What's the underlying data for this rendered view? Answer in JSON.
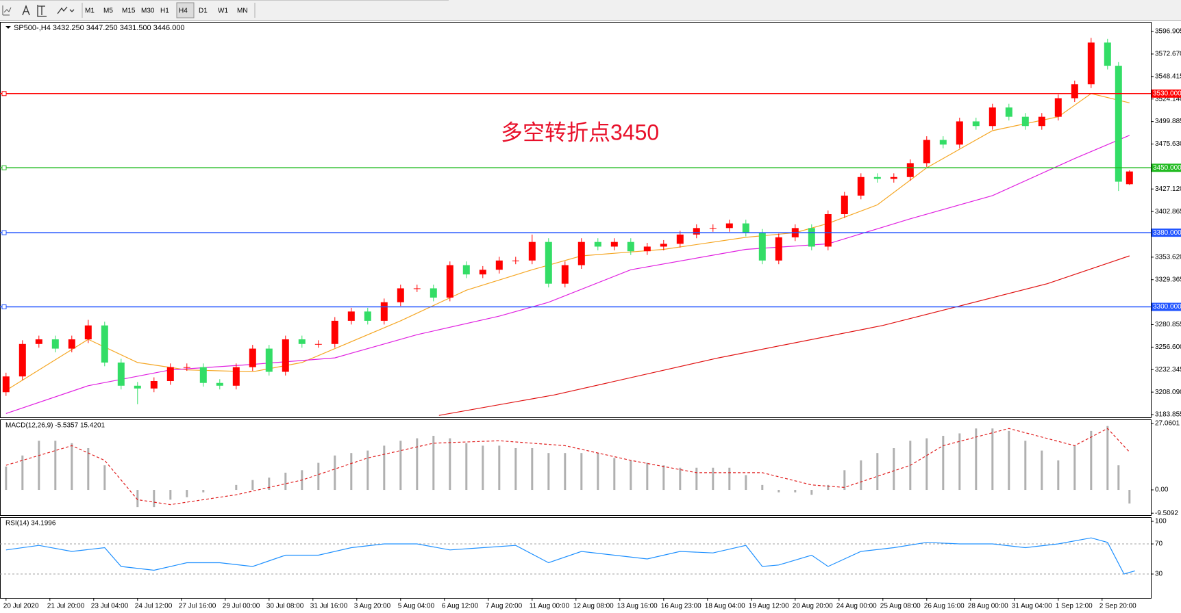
{
  "toolbar": {
    "timeframes": [
      "M1",
      "M5",
      "M15",
      "M30",
      "H1",
      "H4",
      "D1",
      "W1",
      "MN"
    ],
    "active": 5
  },
  "chart_data": [
    {
      "type": "candlestick",
      "title": "SP500-,H4  3432.250 3447.250 3431.500 3446.000",
      "annotation": "多空转折点3450",
      "up_color": "#ff0000",
      "down_color": "#33dd66",
      "annotation_color": "#e8102a",
      "x": [
        0,
        3,
        6,
        9,
        12,
        15,
        18,
        21,
        24,
        27,
        30,
        33,
        36,
        39,
        42,
        45,
        48,
        51,
        54,
        57,
        60,
        63,
        66,
        69,
        72,
        75,
        78,
        81,
        84,
        87,
        90,
        93,
        96,
        99,
        102,
        105,
        108,
        111,
        114,
        117,
        120,
        123,
        126,
        129,
        132,
        135,
        138,
        141,
        144,
        147,
        150,
        153,
        156,
        159,
        162,
        165,
        168,
        171,
        174,
        177,
        180,
        183,
        186,
        189,
        192,
        195,
        198,
        201,
        203,
        205
      ],
      "open": [
        3208,
        3225,
        3260,
        3265,
        3255,
        3265,
        3280,
        3240,
        3215,
        3212,
        3220,
        3235,
        3235,
        3218,
        3215,
        3235,
        3255,
        3230,
        3265,
        3260,
        3260,
        3285,
        3295,
        3285,
        3305,
        3320,
        3320,
        3310,
        3345,
        3335,
        3340,
        3350,
        3350,
        3370,
        3325,
        3345,
        3370,
        3365,
        3370,
        3360,
        3365,
        3368,
        3378,
        3385,
        3385,
        3390,
        3380,
        3350,
        3375,
        3385,
        3365,
        3400,
        3420,
        3440,
        3438,
        3440,
        3455,
        3480,
        3475,
        3500,
        3495,
        3515,
        3505,
        3495,
        3505,
        3525,
        3540,
        3585,
        3560,
        3432.25
      ],
      "high": [
        3229,
        3264,
        3269,
        3269,
        3269,
        3286,
        3284,
        3244,
        3219,
        3224,
        3239,
        3239,
        3239,
        3222,
        3239,
        3259,
        3259,
        3269,
        3269,
        3264,
        3289,
        3299,
        3299,
        3309,
        3324,
        3324,
        3324,
        3349,
        3349,
        3344,
        3354,
        3354,
        3378,
        3374,
        3349,
        3374,
        3374,
        3374,
        3374,
        3369,
        3372,
        3382,
        3389,
        3389,
        3394,
        3394,
        3384,
        3379,
        3389,
        3389,
        3404,
        3424,
        3444,
        3444,
        3444,
        3459,
        3484,
        3484,
        3504,
        3504,
        3519,
        3519,
        3509,
        3509,
        3529,
        3544,
        3590,
        3589,
        3564,
        3447.25
      ],
      "low": [
        3204,
        3221,
        3256,
        3251,
        3251,
        3261,
        3236,
        3211,
        3195,
        3208,
        3216,
        3231,
        3214,
        3211,
        3211,
        3231,
        3226,
        3226,
        3256,
        3256,
        3256,
        3281,
        3281,
        3281,
        3301,
        3316,
        3306,
        3306,
        3331,
        3331,
        3336,
        3346,
        3346,
        3321,
        3321,
        3341,
        3361,
        3361,
        3356,
        3356,
        3361,
        3364,
        3374,
        3381,
        3381,
        3376,
        3346,
        3346,
        3371,
        3361,
        3361,
        3396,
        3416,
        3434,
        3434,
        3436,
        3451,
        3471,
        3471,
        3491,
        3491,
        3501,
        3491,
        3491,
        3501,
        3521,
        3536,
        3556,
        3425,
        3431.5
      ],
      "close": [
        3225,
        3260,
        3265,
        3255,
        3265,
        3280,
        3240,
        3215,
        3212,
        3220,
        3235,
        3235,
        3218,
        3215,
        3235,
        3255,
        3230,
        3265,
        3260,
        3260,
        3285,
        3295,
        3285,
        3305,
        3320,
        3320,
        3310,
        3345,
        3335,
        3340,
        3350,
        3350,
        3370,
        3325,
        3345,
        3370,
        3365,
        3370,
        3360,
        3365,
        3368,
        3378,
        3385,
        3385,
        3390,
        3380,
        3350,
        3375,
        3385,
        3365,
        3400,
        3420,
        3440,
        3438,
        3440,
        3455,
        3480,
        3475,
        3500,
        3495,
        3515,
        3505,
        3495,
        3505,
        3525,
        3540,
        3585,
        3560,
        3435,
        3446
      ],
      "lines": [
        {
          "color": "#f5a623",
          "x": [
            0,
            15,
            24,
            33,
            45,
            54,
            60,
            72,
            84,
            96,
            105,
            120,
            135,
            144,
            150,
            159,
            168,
            180,
            192,
            198,
            205
          ],
          "values": [
            3210,
            3265,
            3240,
            3232,
            3230,
            3240,
            3255,
            3285,
            3318,
            3340,
            3355,
            3362,
            3375,
            3380,
            3390,
            3410,
            3450,
            3490,
            3505,
            3530,
            3520
          ]
        },
        {
          "color": "#e020e0",
          "x": [
            0,
            15,
            30,
            45,
            60,
            75,
            90,
            99,
            114,
            135,
            150,
            165,
            180,
            195,
            205
          ],
          "values": [
            3185,
            3215,
            3232,
            3238,
            3245,
            3270,
            3290,
            3305,
            3340,
            3362,
            3368,
            3395,
            3420,
            3460,
            3485
          ]
        },
        {
          "color": "#e01010",
          "x": [
            79,
            100,
            130,
            160,
            190,
            205
          ],
          "values": [
            3183,
            3205,
            3245,
            3280,
            3325,
            3355
          ]
        }
      ],
      "price_lines": [
        {
          "value": 3530,
          "label": "3530.000",
          "color": "#ff0000"
        },
        {
          "value": 3450,
          "label": "3450.000",
          "color": "#22bb22"
        },
        {
          "value": 3380,
          "label": "3380.000",
          "color": "#2255ff"
        },
        {
          "value": 3300,
          "label": "3300.000",
          "color": "#2255ff"
        }
      ],
      "xlim": [
        -1.1,
        208.9
      ],
      "xticks": [
        {
          "value": 0,
          "label": "20 Jul 2020"
        },
        {
          "value": 8,
          "label": "21 Jul 20:00"
        },
        {
          "value": 16,
          "label": "23 Jul 04:00"
        },
        {
          "value": 24,
          "label": "24 Jul 12:00"
        },
        {
          "value": 32,
          "label": "27 Jul 16:00"
        },
        {
          "value": 40,
          "label": "29 Jul 00:00"
        },
        {
          "value": 48,
          "label": "30 Jul 08:00"
        },
        {
          "value": 56,
          "label": "31 Jul 16:00"
        },
        {
          "value": 64,
          "label": "3 Aug 20:00"
        },
        {
          "value": 72,
          "label": "5 Aug 04:00"
        },
        {
          "value": 80,
          "label": "6 Aug 12:00"
        },
        {
          "value": 88,
          "label": "7 Aug 20:00"
        },
        {
          "value": 96,
          "label": "11 Aug 00:00"
        },
        {
          "value": 104,
          "label": "12 Aug 08:00"
        },
        {
          "value": 112,
          "label": "13 Aug 16:00"
        },
        {
          "value": 120,
          "label": "16 Aug 23:00"
        },
        {
          "value": 128,
          "label": "18 Aug 04:00"
        },
        {
          "value": 136,
          "label": "19 Aug 12:00"
        },
        {
          "value": 144,
          "label": "20 Aug 20:00"
        },
        {
          "value": 152,
          "label": "24 Aug 00:00"
        },
        {
          "value": 160,
          "label": "25 Aug 08:00"
        },
        {
          "value": 168,
          "label": "26 Aug 16:00"
        },
        {
          "value": 176,
          "label": "28 Aug 00:00"
        },
        {
          "value": 184,
          "label": "31 Aug 04:00"
        },
        {
          "value": 192,
          "label": "1 Sep 12:00"
        },
        {
          "value": 200,
          "label": "2 Sep 20:00"
        }
      ],
      "ylim": [
        3180.9,
        3607.3
      ],
      "yticks": [
        3596.905,
        {
          "value": 3572.67,
          "label": "3572.670"
        },
        3548.415,
        {
          "value": 3524.14,
          "label": "3524.140"
        },
        3499.885,
        {
          "value": 3475.63,
          "label": "3475.630"
        },
        {
          "value": 3427.12,
          "label": "3427.120"
        },
        3402.865,
        {
          "value": 3353.62,
          "label": "3353.620"
        },
        3329.365,
        3280.855,
        {
          "value": 3256.6,
          "label": "3256.600"
        },
        3232.345,
        {
          "value": 3208.09,
          "label": "3208.090"
        },
        3183.855
      ]
    },
    {
      "type": "macd",
      "title": "MACD(12,26,9) -5.5357 15.4201",
      "color": "#b0b0b0",
      "x": [
        0,
        3,
        6,
        9,
        12,
        15,
        18,
        21,
        24,
        27,
        30,
        33,
        36,
        39,
        42,
        45,
        48,
        51,
        54,
        57,
        60,
        63,
        66,
        69,
        72,
        75,
        78,
        81,
        84,
        87,
        90,
        93,
        96,
        99,
        102,
        105,
        108,
        111,
        114,
        117,
        120,
        123,
        126,
        129,
        132,
        135,
        138,
        141,
        144,
        147,
        150,
        153,
        156,
        159,
        162,
        165,
        168,
        171,
        174,
        177,
        180,
        183,
        186,
        189,
        192,
        195,
        198,
        201,
        203,
        205
      ],
      "values": [
        9.5,
        14,
        20,
        20,
        19,
        17,
        10,
        0,
        -7,
        -7,
        -4,
        -3,
        -1,
        0,
        2,
        4,
        5,
        7,
        8,
        11,
        14,
        15,
        16,
        18,
        20,
        21,
        22,
        21,
        19,
        18,
        18,
        17,
        17,
        15,
        15,
        15,
        15,
        13,
        12,
        11,
        10,
        9,
        9,
        9,
        9,
        6,
        2,
        -1,
        -1,
        -2,
        2,
        8,
        12,
        15,
        17,
        20,
        21,
        22,
        23,
        25,
        25,
        24,
        20,
        16,
        12,
        18,
        24,
        26,
        10,
        -5.5357
      ],
      "signal": {
        "color": "#e02020",
        "x": [
          0,
          12,
          18,
          24,
          30,
          42,
          54,
          66,
          78,
          90,
          102,
          114,
          126,
          138,
          147,
          153,
          165,
          171,
          183,
          195,
          201,
          205
        ],
        "values": [
          10,
          18,
          12,
          -4,
          -6,
          -2,
          4,
          13,
          19,
          20,
          18,
          12,
          7,
          7,
          2,
          1,
          10,
          18,
          25,
          18,
          25,
          15.4201
        ]
      },
      "ylim": [
        -10.3,
        28.7
      ],
      "yticks": [
        27.0601,
        {
          "value": 0,
          "label": "0.00"
        },
        -9.5092
      ]
    },
    {
      "type": "line",
      "title": "RSI(14) 34.1996",
      "color": "#1e90ff",
      "x": [
        0,
        6,
        12,
        18,
        21,
        27,
        33,
        39,
        45,
        51,
        57,
        63,
        69,
        75,
        81,
        87,
        93,
        99,
        105,
        111,
        117,
        123,
        129,
        135,
        138,
        141,
        147,
        150,
        156,
        162,
        168,
        174,
        180,
        186,
        192,
        198,
        201,
        204,
        206
      ],
      "values": [
        62,
        68,
        60,
        65,
        40,
        35,
        45,
        45,
        40,
        55,
        55,
        65,
        70,
        70,
        62,
        65,
        68,
        45,
        60,
        55,
        50,
        60,
        58,
        68,
        40,
        42,
        55,
        40,
        60,
        65,
        72,
        70,
        70,
        65,
        70,
        78,
        72,
        30,
        34.1996
      ],
      "levels": [
        70,
        30
      ],
      "ylim": [
        -1.8,
        105.5
      ],
      "yticks": [
        100,
        70,
        30
      ]
    }
  ]
}
